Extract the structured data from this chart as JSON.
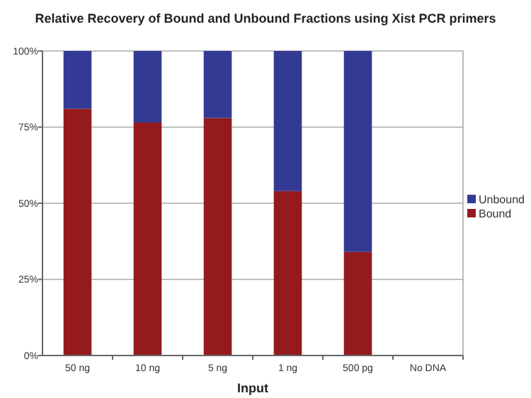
{
  "chart_data": {
    "type": "bar",
    "title": "Relative Recovery of Bound and Unbound Fractions using Xist PCR primers",
    "xlabel": "Input",
    "categories": [
      "50 ng",
      "10 ng",
      "5 ng",
      "1 ng",
      "500 pg",
      "No DNA"
    ],
    "stacked": true,
    "series": [
      {
        "name": "Bound",
        "color": "#951a1d",
        "values": [
          81,
          76.5,
          78,
          54,
          34,
          null
        ]
      },
      {
        "name": "Unbound",
        "color": "#333a94",
        "values": [
          19,
          23.5,
          22,
          46,
          66,
          null
        ]
      }
    ],
    "ylim": [
      0,
      100
    ],
    "yticks": [
      {
        "value": 0,
        "label": "0%"
      },
      {
        "value": 25,
        "label": "25%"
      },
      {
        "value": 50,
        "label": "50%"
      },
      {
        "value": 75,
        "label": "75%"
      },
      {
        "value": 100,
        "label": "100%"
      }
    ],
    "grid": "y",
    "legend": "right"
  }
}
